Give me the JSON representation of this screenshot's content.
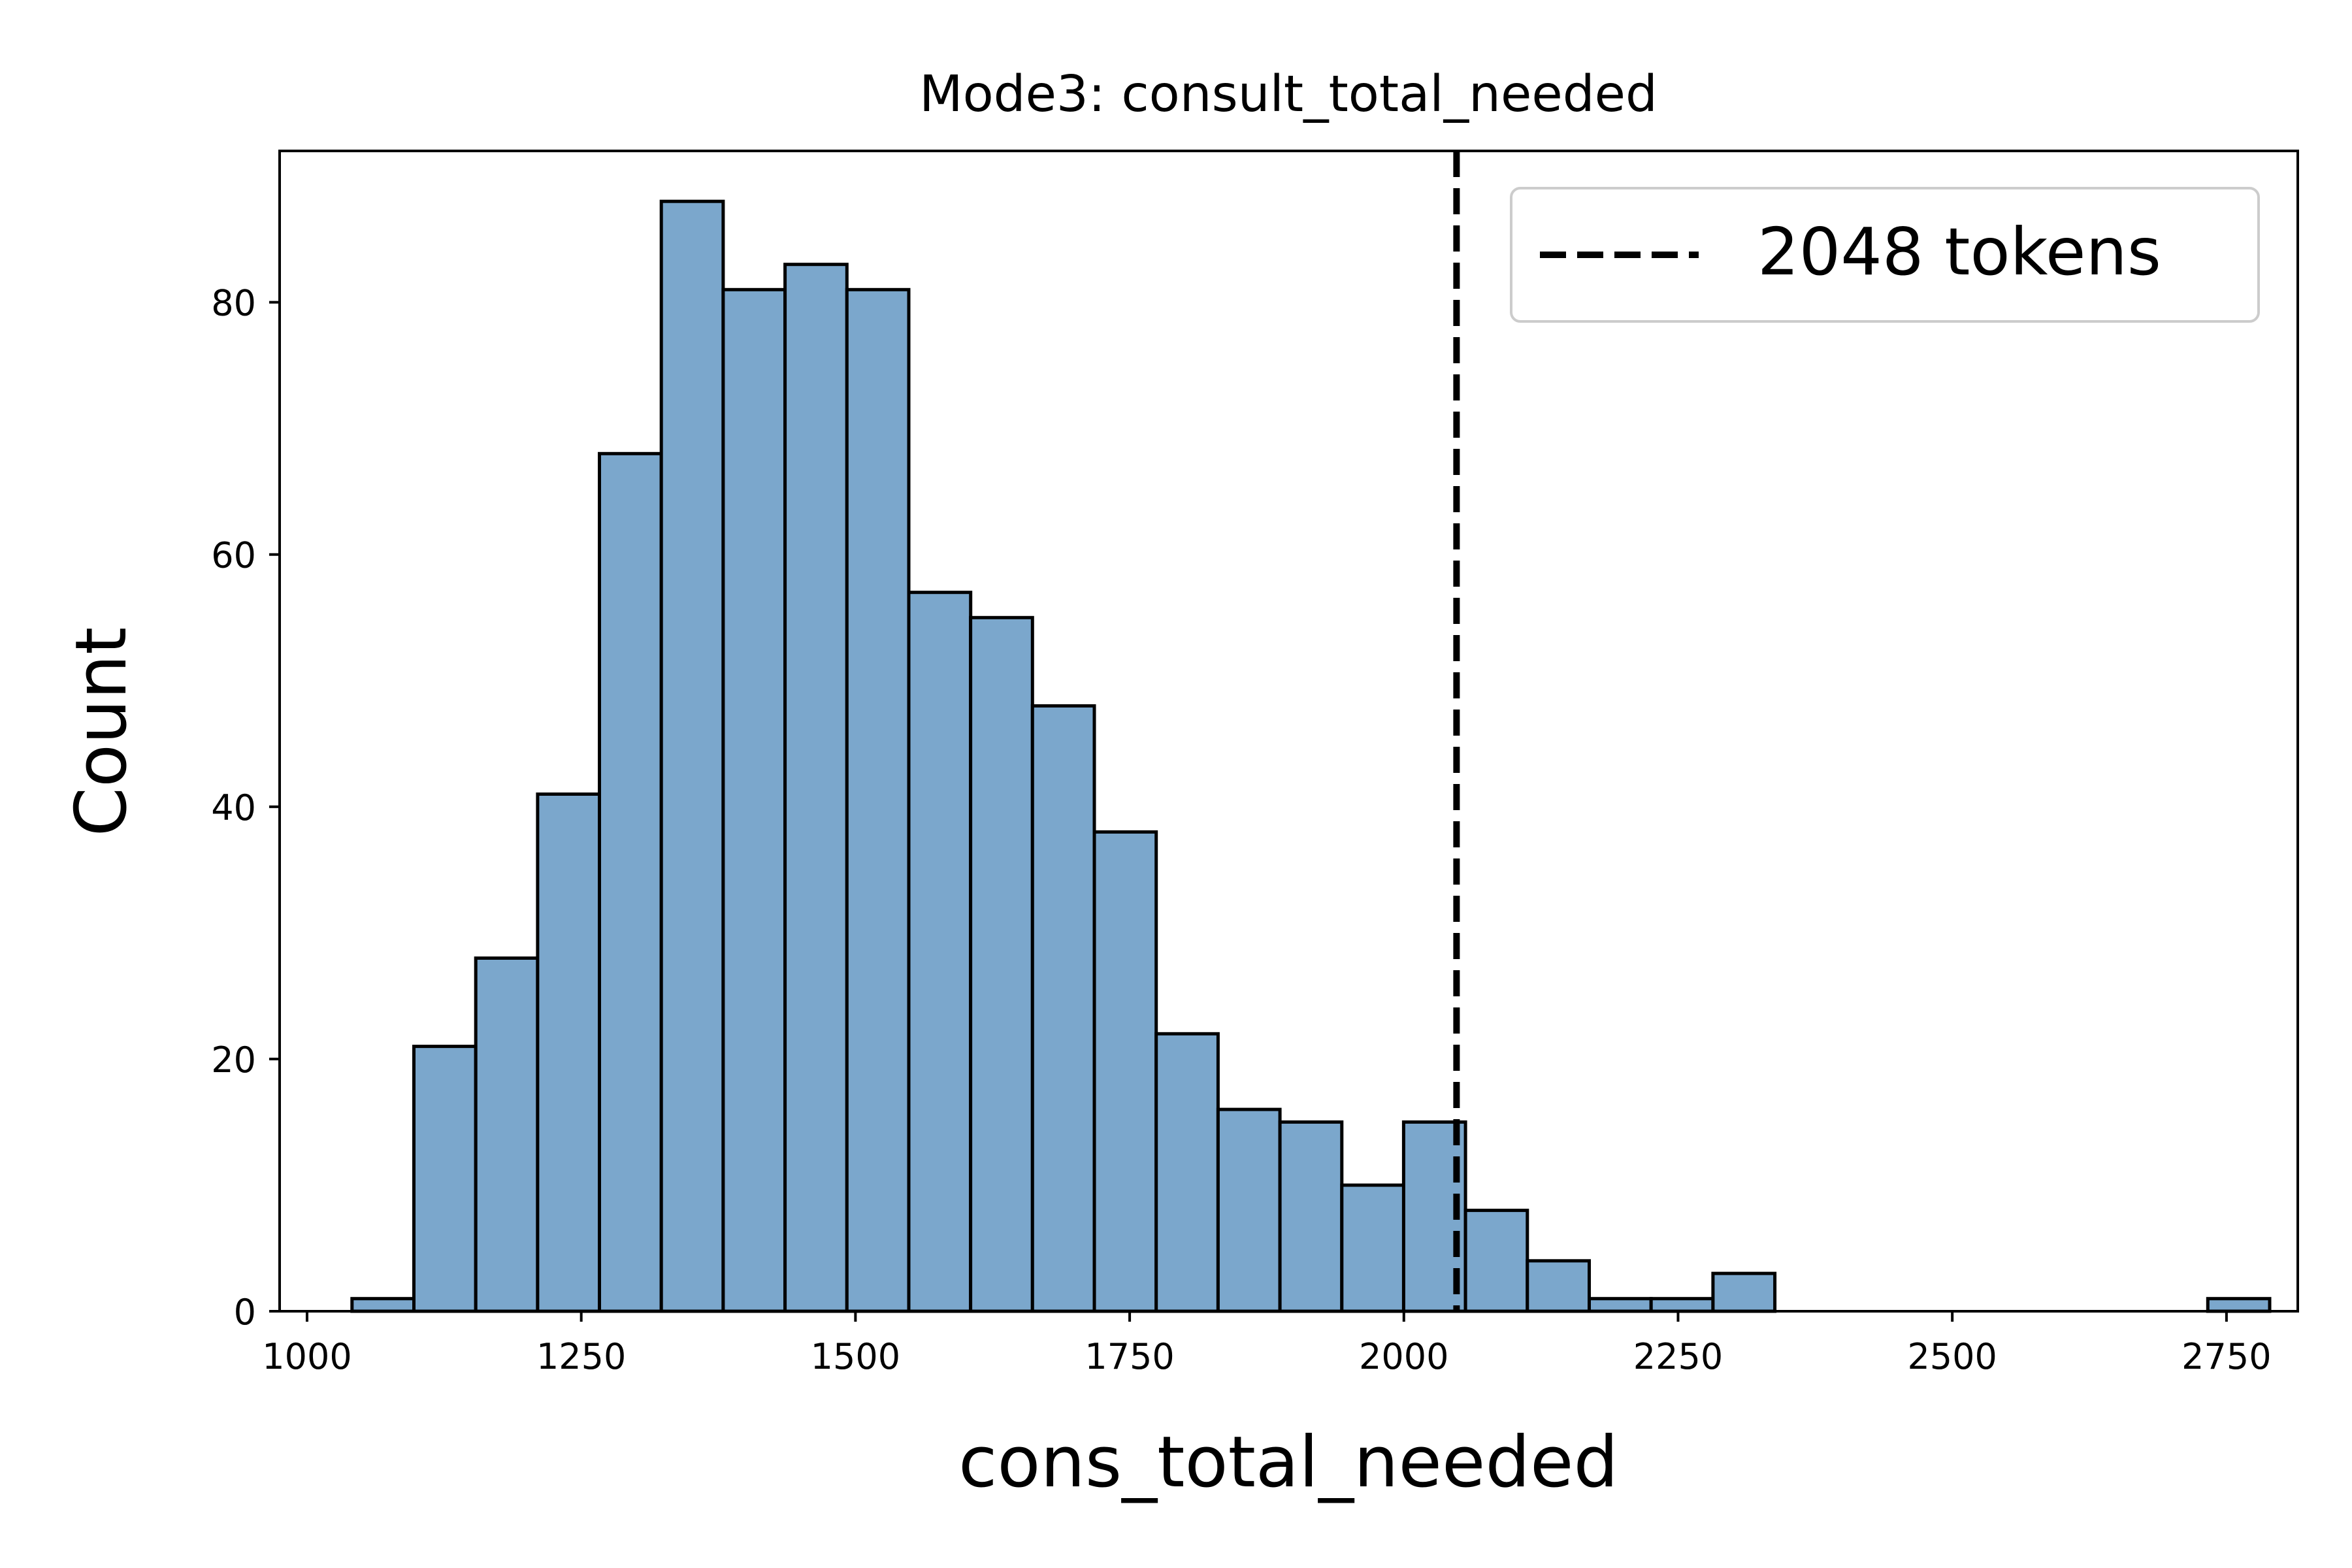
{
  "chart_data": {
    "type": "bar",
    "title": "Mode3: consult_total_needed",
    "xlabel": "cons_total_needed",
    "ylabel": "Count",
    "xlim": [
      975,
      2815
    ],
    "ylim": [
      0,
      92
    ],
    "x_ticks": [
      1000,
      1250,
      1500,
      1750,
      2000,
      2250,
      2500,
      2750
    ],
    "y_ticks": [
      0,
      20,
      40,
      60,
      80
    ],
    "grid": false,
    "legend_position": "top-right",
    "bins": {
      "start": 1041,
      "width": 56.4,
      "counts": [
        1,
        21,
        28,
        41,
        68,
        88,
        81,
        83,
        81,
        57,
        55,
        48,
        38,
        22,
        16,
        15,
        10,
        15,
        8,
        4,
        1,
        1,
        3,
        0,
        0,
        0,
        0,
        0,
        0,
        0,
        1
      ]
    },
    "bar_color": "#7ba7cc",
    "bar_edge_color": "#000000",
    "reference_line": {
      "x": 2048,
      "label": "2048 tokens",
      "style": "dashed",
      "color": "#000000"
    }
  }
}
